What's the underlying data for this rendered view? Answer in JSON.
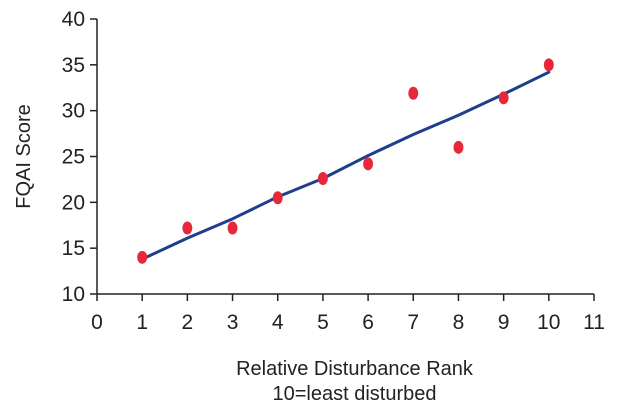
{
  "chart_data": {
    "type": "scatter",
    "title": "",
    "xlabel_lines": [
      "Relative Disturbance Rank",
      "10=least disturbed"
    ],
    "ylabel": "FQAI Score",
    "xlim": [
      0,
      11
    ],
    "ylim": [
      10,
      40
    ],
    "x_ticks": [
      0,
      1,
      2,
      3,
      4,
      5,
      6,
      7,
      8,
      9,
      10,
      11
    ],
    "y_ticks": [
      10,
      15,
      20,
      25,
      30,
      35,
      40
    ],
    "grid": false,
    "legend": "none",
    "series": [
      {
        "kind": "points",
        "color": "#e8283a",
        "points": [
          {
            "x": 1,
            "y": 14.0
          },
          {
            "x": 2,
            "y": 17.2
          },
          {
            "x": 3,
            "y": 17.2
          },
          {
            "x": 4,
            "y": 20.5
          },
          {
            "x": 5,
            "y": 22.6
          },
          {
            "x": 6,
            "y": 24.2
          },
          {
            "x": 7,
            "y": 31.9
          },
          {
            "x": 8,
            "y": 26.0
          },
          {
            "x": 9,
            "y": 31.4
          },
          {
            "x": 10,
            "y": 35.0
          }
        ]
      },
      {
        "kind": "line",
        "color": "#1e3f8c",
        "points": [
          {
            "x": 1,
            "y": 13.8
          },
          {
            "x": 2,
            "y": 16.1
          },
          {
            "x": 3,
            "y": 18.2
          },
          {
            "x": 4,
            "y": 20.6
          },
          {
            "x": 5,
            "y": 22.6
          },
          {
            "x": 6,
            "y": 25.1
          },
          {
            "x": 7,
            "y": 27.4
          },
          {
            "x": 8,
            "y": 29.5
          },
          {
            "x": 9,
            "y": 31.8
          },
          {
            "x": 10,
            "y": 34.2
          }
        ]
      }
    ],
    "colors": {
      "axis": "#222222",
      "text": "#222222",
      "background": "#ffffff"
    }
  }
}
